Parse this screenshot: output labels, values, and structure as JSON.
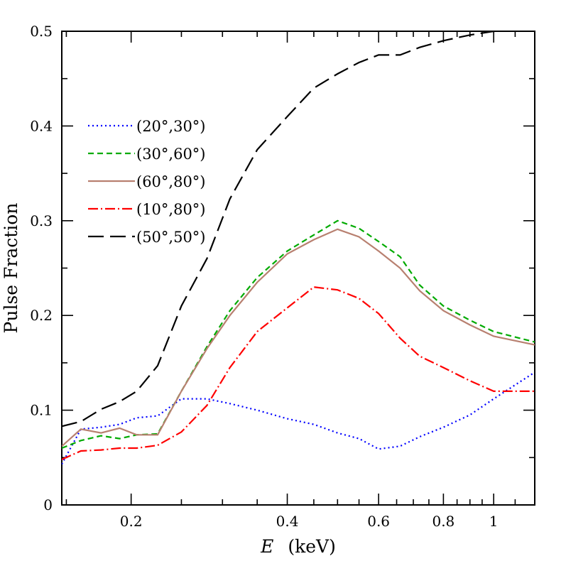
{
  "chart_data": {
    "type": "line",
    "xlabel": {
      "var": "E",
      "rest": "(keV)"
    },
    "ylabel": "Pulse Fraction",
    "xscale": "log",
    "xlim": [
      0.147,
      1.2
    ],
    "ylim": [
      0,
      0.5
    ],
    "x_ticks": [
      {
        "v": 0.2,
        "label": "0.2"
      },
      {
        "v": 0.4,
        "label": "0.4"
      },
      {
        "v": 0.6,
        "label": "0.6"
      },
      {
        "v": 0.8,
        "label": "0.8"
      },
      {
        "v": 1.0,
        "label": "1"
      }
    ],
    "y_ticks": [
      {
        "v": 0,
        "label": "0"
      },
      {
        "v": 0.1,
        "label": "0.1"
      },
      {
        "v": 0.2,
        "label": "0.2"
      },
      {
        "v": 0.3,
        "label": "0.3"
      },
      {
        "v": 0.4,
        "label": "0.4"
      },
      {
        "v": 0.5,
        "label": "0.5"
      }
    ],
    "legend_position": "upper-left",
    "series": [
      {
        "name": "(20°,30°)",
        "color": "#0000ff",
        "dash": "dotted",
        "x": [
          0.147,
          0.16,
          0.175,
          0.19,
          0.205,
          0.225,
          0.25,
          0.28,
          0.31,
          0.35,
          0.4,
          0.45,
          0.5,
          0.55,
          0.6,
          0.66,
          0.72,
          0.8,
          0.9,
          1.0,
          1.2
        ],
        "y": [
          0.043,
          0.08,
          0.082,
          0.085,
          0.092,
          0.094,
          0.112,
          0.112,
          0.107,
          0.1,
          0.091,
          0.085,
          0.076,
          0.07,
          0.059,
          0.062,
          0.072,
          0.082,
          0.095,
          0.112,
          0.14
        ]
      },
      {
        "name": "(30°,60°)",
        "color": "#00aa00",
        "dash": "dashed",
        "x": [
          0.147,
          0.16,
          0.175,
          0.19,
          0.205,
          0.225,
          0.25,
          0.28,
          0.31,
          0.35,
          0.4,
          0.45,
          0.5,
          0.55,
          0.6,
          0.66,
          0.72,
          0.8,
          0.9,
          1.0,
          1.2
        ],
        "y": [
          0.06,
          0.068,
          0.073,
          0.07,
          0.074,
          0.075,
          0.12,
          0.167,
          0.205,
          0.24,
          0.268,
          0.285,
          0.3,
          0.292,
          0.278,
          0.262,
          0.232,
          0.21,
          0.195,
          0.183,
          0.172
        ]
      },
      {
        "name": "(60°,80°)",
        "color": "#b88070",
        "dash": "solid",
        "x": [
          0.147,
          0.16,
          0.175,
          0.19,
          0.205,
          0.225,
          0.25,
          0.28,
          0.31,
          0.35,
          0.4,
          0.45,
          0.5,
          0.55,
          0.6,
          0.66,
          0.72,
          0.8,
          0.9,
          1.0,
          1.2
        ],
        "y": [
          0.062,
          0.08,
          0.076,
          0.081,
          0.074,
          0.074,
          0.12,
          0.165,
          0.2,
          0.235,
          0.265,
          0.28,
          0.291,
          0.283,
          0.268,
          0.25,
          0.226,
          0.205,
          0.19,
          0.178,
          0.169
        ]
      },
      {
        "name": "(10°,80°)",
        "color": "#ff0000",
        "dash": "dashdot",
        "x": [
          0.147,
          0.16,
          0.175,
          0.19,
          0.205,
          0.225,
          0.25,
          0.28,
          0.31,
          0.35,
          0.4,
          0.45,
          0.5,
          0.55,
          0.6,
          0.66,
          0.72,
          0.8,
          0.9,
          1.0,
          1.2
        ],
        "y": [
          0.048,
          0.057,
          0.058,
          0.06,
          0.06,
          0.063,
          0.077,
          0.105,
          0.145,
          0.183,
          0.208,
          0.23,
          0.227,
          0.218,
          0.202,
          0.176,
          0.157,
          0.145,
          0.131,
          0.12,
          0.12
        ]
      },
      {
        "name": "(50°,50°)",
        "color": "#000000",
        "dash": "longdash",
        "x": [
          0.147,
          0.16,
          0.175,
          0.19,
          0.205,
          0.225,
          0.25,
          0.28,
          0.31,
          0.35,
          0.4,
          0.45,
          0.5,
          0.55,
          0.6,
          0.66,
          0.72,
          0.8,
          0.9,
          1.0,
          1.2
        ],
        "y": [
          0.083,
          0.088,
          0.101,
          0.109,
          0.12,
          0.147,
          0.21,
          0.26,
          0.323,
          0.375,
          0.41,
          0.44,
          0.455,
          0.467,
          0.475,
          0.475,
          0.483,
          0.49,
          0.496,
          0.5,
          0.502
        ]
      }
    ]
  }
}
